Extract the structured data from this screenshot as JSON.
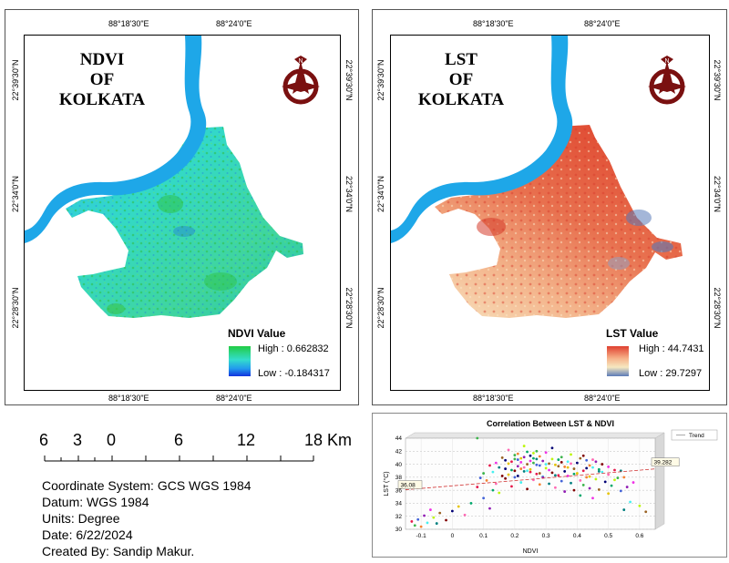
{
  "ndvi_map": {
    "title_lines": [
      "NDVI",
      "OF",
      "KOLKATA"
    ],
    "top_ticks": [
      "88°18'30\"E",
      "88°24'0\"E"
    ],
    "bottom_ticks": [
      "88°18'30\"E",
      "88°24'0\"E"
    ],
    "side_ticks": [
      "22°39'30\"N",
      "22°34'0\"N",
      "22°28'30\"N"
    ],
    "legend": {
      "title": "NDVI Value",
      "high": "High : 0.662832",
      "low": "Low : -0.184317"
    }
  },
  "lst_map": {
    "title_lines": [
      "LST",
      "OF",
      "KOLKATA"
    ],
    "top_ticks": [
      "88°18'30\"E",
      "88°24'0\"E"
    ],
    "bottom_ticks": [
      "88°18'30\"E",
      "88°24'0\"E"
    ],
    "side_ticks": [
      "22°39'30\"N",
      "22°34'0\"N",
      "22°28'30\"N"
    ],
    "legend": {
      "title": "LST Value",
      "high": "High : 44.7431",
      "low": "Low : 29.7297"
    }
  },
  "scale_bar": {
    "labels": [
      "6",
      "3",
      "0",
      "6",
      "12",
      "18 Km"
    ]
  },
  "metadata": {
    "coordinate_system": "Coordinate System: GCS WGS 1984",
    "datum": "Datum: WGS 1984",
    "units": "Units: Degree",
    "date": "Date: 6/22/2024",
    "created_by": "Created By: Sandip Makur."
  },
  "colors": {
    "river": "#1ea7e8",
    "ndvi_high": "#22cc44",
    "ndvi_mid": "#33ddcc",
    "ndvi_low": "#1133dd",
    "lst_high": "#e04030",
    "lst_mid": "#f6e8c0",
    "lst_low": "#5a7ab8",
    "emblem": "#7a1010"
  },
  "chart_data": {
    "type": "scatter",
    "title": "Correlation Between LST & NDVI",
    "xlabel": "NDVI",
    "ylabel": "LST (°C)",
    "x_ticks": [
      "-0.1",
      "0",
      "0.1",
      "0.2",
      "0.3",
      "0.4",
      "0.5",
      "0.6"
    ],
    "y_ticks": [
      "30",
      "32",
      "34",
      "36",
      "38",
      "40",
      "42",
      "44"
    ],
    "xlim": [
      -0.15,
      0.65
    ],
    "ylim": [
      30,
      44
    ],
    "legend": "Trend",
    "legend_position": "top-right",
    "trend": {
      "x": [
        -0.15,
        0.65
      ],
      "y": [
        36.08,
        39.282
      ],
      "start_label": "36.08",
      "end_label": "39.282"
    },
    "points": [
      [
        -0.13,
        31.2
      ],
      [
        -0.12,
        30.6
      ],
      [
        -0.11,
        31.5
      ],
      [
        -0.1,
        30.4
      ],
      [
        -0.09,
        32.1
      ],
      [
        -0.08,
        31.0
      ],
      [
        -0.07,
        33.0
      ],
      [
        -0.06,
        31.8
      ],
      [
        -0.05,
        30.9
      ],
      [
        -0.04,
        32.5
      ],
      [
        -0.02,
        31.4
      ],
      [
        0.0,
        32.8
      ],
      [
        0.02,
        33.5
      ],
      [
        0.04,
        32.2
      ],
      [
        0.06,
        34.0
      ],
      [
        0.08,
        36.5
      ],
      [
        0.08,
        44.0
      ],
      [
        0.1,
        34.8
      ],
      [
        0.11,
        37.5
      ],
      [
        0.12,
        33.2
      ],
      [
        0.13,
        38.8
      ],
      [
        0.14,
        40.2
      ],
      [
        0.15,
        35.6
      ],
      [
        0.15,
        39.5
      ],
      [
        0.16,
        41.0
      ],
      [
        0.17,
        37.8
      ],
      [
        0.17,
        40.6
      ],
      [
        0.18,
        38.4
      ],
      [
        0.18,
        42.2
      ],
      [
        0.19,
        39.1
      ],
      [
        0.19,
        36.6
      ],
      [
        0.2,
        40.8
      ],
      [
        0.2,
        38.0
      ],
      [
        0.21,
        41.6
      ],
      [
        0.21,
        39.7
      ],
      [
        0.22,
        37.2
      ],
      [
        0.22,
        40.3
      ],
      [
        0.23,
        42.8
      ],
      [
        0.23,
        38.9
      ],
      [
        0.24,
        40.0
      ],
      [
        0.24,
        36.2
      ],
      [
        0.25,
        41.3
      ],
      [
        0.25,
        39.2
      ],
      [
        0.26,
        37.6
      ],
      [
        0.26,
        40.9
      ],
      [
        0.27,
        38.5
      ],
      [
        0.27,
        42.0
      ],
      [
        0.28,
        39.8
      ],
      [
        0.28,
        36.9
      ],
      [
        0.29,
        40.5
      ],
      [
        0.29,
        38.1
      ],
      [
        0.3,
        41.8
      ],
      [
        0.3,
        39.4
      ],
      [
        0.31,
        37.0
      ],
      [
        0.31,
        40.1
      ],
      [
        0.32,
        38.7
      ],
      [
        0.32,
        42.5
      ],
      [
        0.33,
        39.9
      ],
      [
        0.33,
        36.4
      ],
      [
        0.34,
        40.7
      ],
      [
        0.34,
        38.3
      ],
      [
        0.35,
        41.1
      ],
      [
        0.35,
        37.4
      ],
      [
        0.36,
        39.6
      ],
      [
        0.36,
        35.8
      ],
      [
        0.37,
        40.4
      ],
      [
        0.37,
        38.2
      ],
      [
        0.38,
        41.5
      ],
      [
        0.38,
        37.1
      ],
      [
        0.39,
        39.3
      ],
      [
        0.39,
        36.0
      ],
      [
        0.4,
        40.2
      ],
      [
        0.4,
        38.6
      ],
      [
        0.41,
        37.5
      ],
      [
        0.41,
        35.2
      ],
      [
        0.42,
        39.0
      ],
      [
        0.42,
        36.8
      ],
      [
        0.43,
        40.6
      ],
      [
        0.43,
        38.0
      ],
      [
        0.44,
        36.3
      ],
      [
        0.45,
        39.5
      ],
      [
        0.45,
        34.8
      ],
      [
        0.46,
        37.7
      ],
      [
        0.47,
        38.9
      ],
      [
        0.47,
        36.1
      ],
      [
        0.48,
        40.0
      ],
      [
        0.49,
        37.3
      ],
      [
        0.5,
        35.5
      ],
      [
        0.5,
        38.4
      ],
      [
        0.51,
        36.7
      ],
      [
        0.52,
        39.1
      ],
      [
        0.53,
        37.9
      ],
      [
        0.54,
        35.9
      ],
      [
        0.55,
        38.0
      ],
      [
        0.56,
        36.5
      ],
      [
        0.57,
        34.2
      ],
      [
        0.58,
        37.2
      ],
      [
        0.6,
        33.6
      ],
      [
        0.55,
        33.0
      ],
      [
        0.62,
        32.7
      ],
      [
        0.2,
        39.0
      ],
      [
        0.21,
        38.2
      ],
      [
        0.22,
        40.9
      ],
      [
        0.23,
        39.5
      ],
      [
        0.24,
        41.9
      ],
      [
        0.25,
        38.8
      ],
      [
        0.26,
        40.2
      ],
      [
        0.27,
        39.9
      ],
      [
        0.28,
        41.2
      ],
      [
        0.29,
        38.0
      ],
      [
        0.3,
        40.0
      ],
      [
        0.31,
        39.1
      ],
      [
        0.32,
        40.8
      ],
      [
        0.33,
        38.3
      ],
      [
        0.34,
        39.7
      ],
      [
        0.35,
        40.3
      ],
      [
        0.36,
        38.9
      ],
      [
        0.37,
        39.5
      ],
      [
        0.38,
        40.1
      ],
      [
        0.39,
        38.5
      ],
      [
        0.19,
        40.4
      ],
      [
        0.2,
        41.4
      ],
      [
        0.21,
        40.7
      ],
      [
        0.22,
        39.3
      ],
      [
        0.23,
        41.1
      ],
      [
        0.24,
        39.0
      ],
      [
        0.25,
        40.5
      ],
      [
        0.26,
        41.7
      ],
      [
        0.27,
        40.8
      ],
      [
        0.28,
        38.6
      ],
      [
        0.16,
        38.2
      ],
      [
        0.17,
        39.3
      ],
      [
        0.18,
        40.1
      ],
      [
        0.14,
        37.0
      ],
      [
        0.13,
        36.0
      ],
      [
        0.12,
        39.8
      ],
      [
        0.1,
        38.6
      ],
      [
        0.09,
        37.9
      ],
      [
        0.44,
        39.8
      ],
      [
        0.46,
        40.4
      ],
      [
        0.48,
        38.8
      ],
      [
        0.5,
        39.6
      ],
      [
        0.52,
        37.6
      ],
      [
        0.54,
        39.0
      ],
      [
        0.41,
        40.9
      ],
      [
        0.42,
        41.3
      ],
      [
        0.43,
        39.4
      ],
      [
        0.44,
        38.1
      ],
      [
        0.45,
        40.7
      ],
      [
        0.47,
        39.2
      ]
    ]
  }
}
